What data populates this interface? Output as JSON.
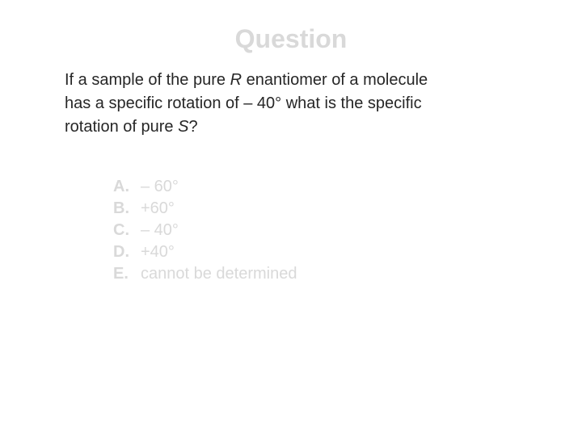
{
  "title": {
    "text": "Question",
    "color": "#d9d9d9",
    "fontsize": 32
  },
  "body": {
    "color": "#262626",
    "fontsize": 20,
    "line1_a": "If a sample of the pure ",
    "line1_R": "R",
    "line1_b": " enantiomer of a molecule",
    "line2": "has a specific rotation of – 40° what is the specific",
    "line3_a": "rotation of pure ",
    "line3_S": "S",
    "line3_b": "?"
  },
  "options": {
    "color": "#d9d9d9",
    "fontsize": 20,
    "items": [
      {
        "letter": "A.",
        "text": "– 60°"
      },
      {
        "letter": "B.",
        "text": "+60°"
      },
      {
        "letter": "C.",
        "text": "– 40°"
      },
      {
        "letter": "D.",
        "text": "+40°"
      },
      {
        "letter": "E.",
        "text": "cannot be determined"
      }
    ]
  }
}
